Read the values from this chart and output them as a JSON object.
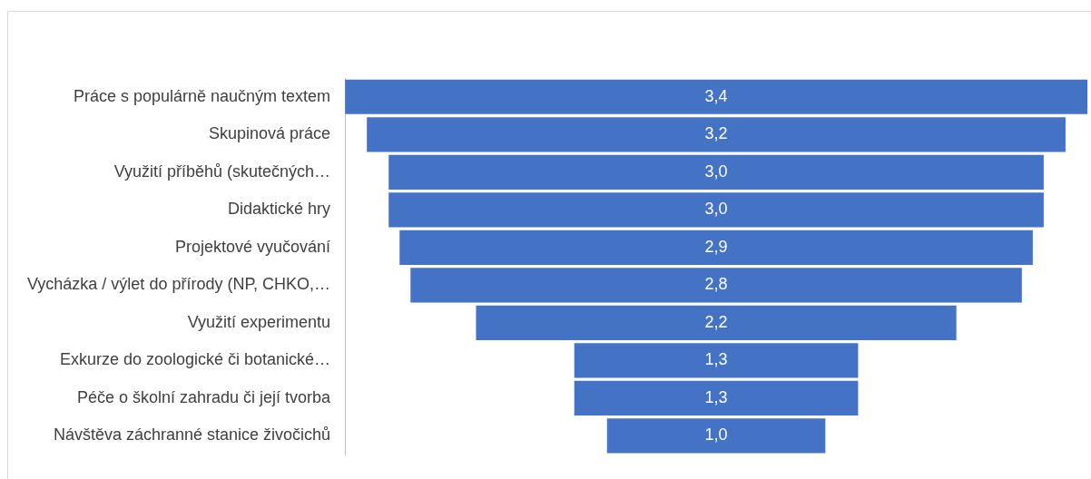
{
  "chart_data": {
    "type": "other",
    "categories": [
      "Práce s populárně naučným textem",
      "Skupinová práce",
      "Využití příběhů (skutečných…",
      "Didaktické hry",
      "Projektové vyučování",
      "Vycházka / výlet do přírody (NP, CHKO,…",
      "Využití experimentu",
      "Exkurze do zoologické či botanické…",
      "Péče o školní zahradu či její tvorba",
      "Návštěva záchranné stanice živočichů"
    ],
    "values": [
      3.4,
      3.2,
      3.0,
      3.0,
      2.9,
      2.8,
      2.2,
      1.3,
      1.3,
      1.0
    ],
    "value_labels": [
      "3,4",
      "3,2",
      "3,0",
      "3,0",
      "2,9",
      "2,8",
      "2,2",
      "1,3",
      "1,3",
      "1,0"
    ],
    "color": "#4472c4",
    "legend": false
  }
}
